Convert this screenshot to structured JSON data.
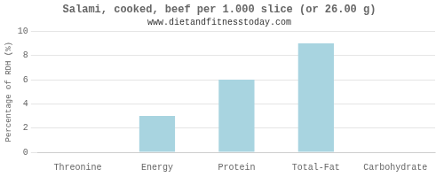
{
  "chart_data": {
    "type": "bar",
    "title": "Salami, cooked, beef per 1.000 slice (or 26.00 g)",
    "subtitle": "www.dietandfitnesstoday.com",
    "categories": [
      "Threonine",
      "Energy",
      "Protein",
      "Total-Fat",
      "Carbohydrate"
    ],
    "values": [
      0,
      3,
      6,
      9,
      0
    ],
    "color": "#a8d4e0",
    "ylabel": "Percentage of RDH (%)",
    "ylim": [
      0,
      10
    ],
    "yticks": [
      0,
      2,
      4,
      6,
      8,
      10
    ],
    "grid": true
  }
}
